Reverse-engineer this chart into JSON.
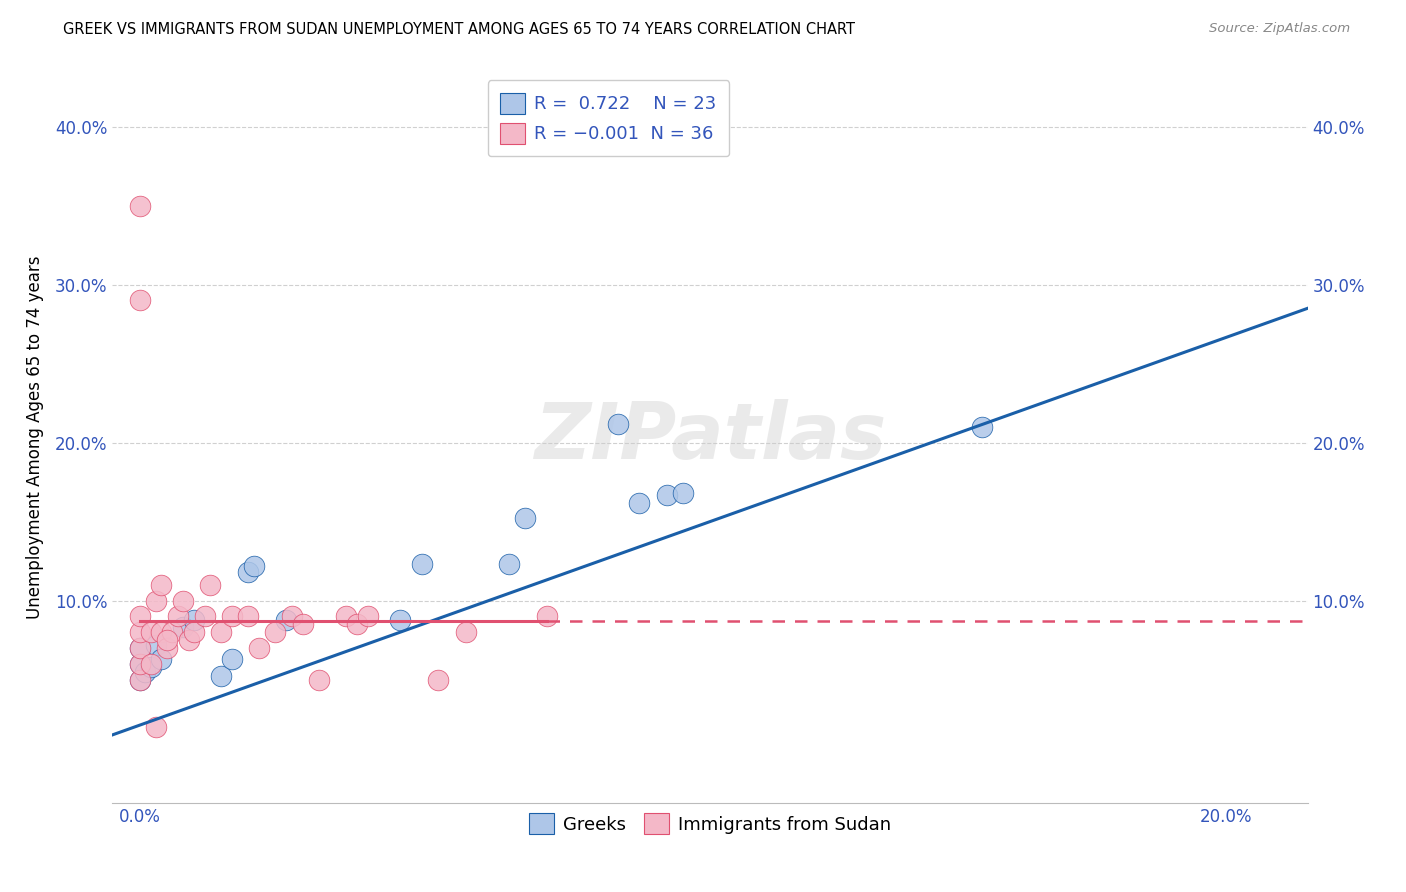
{
  "title": "GREEK VS IMMIGRANTS FROM SUDAN UNEMPLOYMENT AMONG AGES 65 TO 74 YEARS CORRELATION CHART",
  "source": "Source: ZipAtlas.com",
  "ylabel": "Unemployment Among Ages 65 to 74 years",
  "xlim": [
    -0.005,
    0.215
  ],
  "ylim": [
    -0.028,
    0.435
  ],
  "blue_color": "#aec6e8",
  "pink_color": "#f4b8c8",
  "blue_line_color": "#1a5fa8",
  "pink_line_color": "#e05070",
  "grid_color": "#d0d0d0",
  "legend_R_blue": "0.722",
  "legend_N_blue": "23",
  "legend_R_pink": "-0.001",
  "legend_N_pink": "36",
  "legend_labels": [
    "Greeks",
    "Immigrants from Sudan"
  ],
  "greeks_x": [
    0.0,
    0.0,
    0.0,
    0.001,
    0.002,
    0.003,
    0.004,
    0.008,
    0.01,
    0.015,
    0.017,
    0.02,
    0.021,
    0.027,
    0.048,
    0.052,
    0.068,
    0.071,
    0.088,
    0.092,
    0.097,
    0.1,
    0.155
  ],
  "greeks_y": [
    0.05,
    0.06,
    0.07,
    0.055,
    0.058,
    0.072,
    0.063,
    0.083,
    0.088,
    0.052,
    0.063,
    0.118,
    0.122,
    0.088,
    0.088,
    0.123,
    0.123,
    0.152,
    0.212,
    0.162,
    0.167,
    0.168,
    0.21
  ],
  "sudan_x": [
    0.0,
    0.0,
    0.0,
    0.0,
    0.0,
    0.0,
    0.0,
    0.002,
    0.002,
    0.003,
    0.004,
    0.004,
    0.005,
    0.006,
    0.007,
    0.008,
    0.009,
    0.01,
    0.012,
    0.013,
    0.015,
    0.017,
    0.02,
    0.022,
    0.025,
    0.028,
    0.03,
    0.033,
    0.038,
    0.04,
    0.042,
    0.055,
    0.06,
    0.075,
    0.005,
    0.003
  ],
  "sudan_y": [
    0.05,
    0.06,
    0.07,
    0.08,
    0.09,
    0.29,
    0.35,
    0.06,
    0.08,
    0.1,
    0.11,
    0.08,
    0.07,
    0.08,
    0.09,
    0.1,
    0.075,
    0.08,
    0.09,
    0.11,
    0.08,
    0.09,
    0.09,
    0.07,
    0.08,
    0.09,
    0.085,
    0.05,
    0.09,
    0.085,
    0.09,
    0.05,
    0.08,
    0.09,
    0.075,
    0.02
  ],
  "blue_line_x0": -0.005,
  "blue_line_x1": 0.215,
  "blue_line_y0": 0.015,
  "blue_line_y1": 0.285,
  "pink_line_x0": 0.0,
  "pink_line_x1": 0.075,
  "pink_line_x_dash_start": 0.075,
  "pink_line_x_dash_end": 0.215,
  "pink_line_y": 0.087
}
